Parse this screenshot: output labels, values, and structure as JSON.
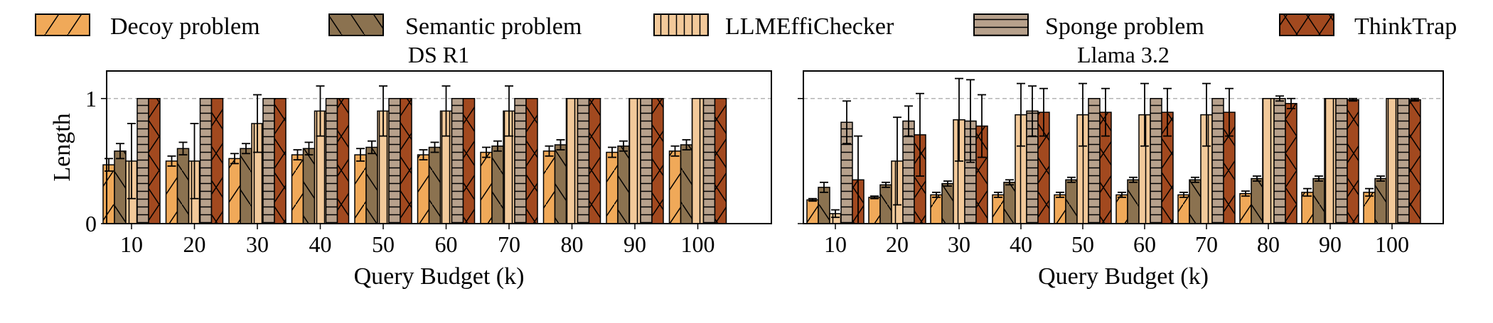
{
  "chart_data": [
    {
      "type": "bar",
      "title": "DS R1",
      "xlabel": "Query Budget (k)",
      "ylabel": "Length",
      "ylim": [
        0,
        1.22
      ],
      "yticks": [
        0,
        1
      ],
      "grid": "dashed horizontal line at 1",
      "legend": "top",
      "categories": [
        "10",
        "20",
        "30",
        "40",
        "50",
        "60",
        "70",
        "80",
        "90",
        "100"
      ],
      "series": [
        {
          "name": "Decoy problem",
          "values": [
            0.47,
            0.5,
            0.52,
            0.55,
            0.55,
            0.55,
            0.57,
            0.58,
            0.57,
            0.58
          ],
          "errors": [
            0.05,
            0.04,
            0.04,
            0.04,
            0.05,
            0.04,
            0.04,
            0.04,
            0.04,
            0.04
          ]
        },
        {
          "name": "Semantic problem",
          "values": [
            0.58,
            0.6,
            0.6,
            0.6,
            0.61,
            0.61,
            0.62,
            0.63,
            0.62,
            0.63
          ],
          "errors": [
            0.06,
            0.05,
            0.04,
            0.05,
            0.05,
            0.04,
            0.04,
            0.04,
            0.04,
            0.04
          ]
        },
        {
          "name": "LLMEffiChecker",
          "values": [
            0.5,
            0.5,
            0.8,
            0.9,
            0.9,
            0.9,
            0.9,
            1.0,
            1.0,
            1.0
          ],
          "errors": [
            0.3,
            0.3,
            0.23,
            0.2,
            0.2,
            0.2,
            0.2,
            0.0,
            0.0,
            0.0
          ]
        },
        {
          "name": "Sponge problem",
          "values": [
            1.0,
            1.0,
            1.0,
            1.0,
            1.0,
            1.0,
            1.0,
            1.0,
            1.0,
            1.0
          ],
          "errors": [
            0,
            0,
            0,
            0,
            0,
            0,
            0,
            0,
            0,
            0
          ]
        },
        {
          "name": "ThinkTrap",
          "values": [
            1.0,
            1.0,
            1.0,
            1.0,
            1.0,
            1.0,
            1.0,
            1.0,
            1.0,
            1.0
          ],
          "errors": [
            0,
            0,
            0,
            0,
            0,
            0,
            0,
            0,
            0,
            0
          ]
        }
      ]
    },
    {
      "type": "bar",
      "title": "Llama 3.2",
      "xlabel": "Query Budget (k)",
      "ylabel": "",
      "ylim": [
        0,
        1.22
      ],
      "yticks": [
        0,
        1
      ],
      "grid": "dashed horizontal line at 1",
      "legend": "top",
      "categories": [
        "10",
        "20",
        "30",
        "40",
        "50",
        "60",
        "70",
        "80",
        "90",
        "100"
      ],
      "series": [
        {
          "name": "Decoy problem",
          "values": [
            0.19,
            0.21,
            0.23,
            0.23,
            0.23,
            0.23,
            0.23,
            0.24,
            0.25,
            0.25
          ],
          "errors": [
            0.01,
            0.01,
            0.02,
            0.02,
            0.02,
            0.02,
            0.02,
            0.02,
            0.03,
            0.03
          ]
        },
        {
          "name": "Semantic problem",
          "values": [
            0.29,
            0.31,
            0.32,
            0.33,
            0.35,
            0.35,
            0.35,
            0.36,
            0.36,
            0.36
          ],
          "errors": [
            0.04,
            0.02,
            0.02,
            0.02,
            0.02,
            0.02,
            0.02,
            0.02,
            0.02,
            0.02
          ]
        },
        {
          "name": "LLMEffiChecker",
          "values": [
            0.08,
            0.5,
            0.83,
            0.87,
            0.87,
            0.87,
            0.87,
            1.0,
            1.0,
            1.0
          ],
          "errors": [
            0.03,
            0.35,
            0.33,
            0.25,
            0.25,
            0.25,
            0.25,
            0.0,
            0.0,
            0.0
          ]
        },
        {
          "name": "Sponge problem",
          "values": [
            0.81,
            0.82,
            0.82,
            0.9,
            1.0,
            1.0,
            1.0,
            1.0,
            1.0,
            1.0
          ],
          "errors": [
            0.17,
            0.12,
            0.33,
            0.2,
            0.0,
            0.0,
            0.0,
            0.02,
            0.0,
            0.0
          ]
        },
        {
          "name": "ThinkTrap",
          "values": [
            0.35,
            0.71,
            0.78,
            0.89,
            0.89,
            0.89,
            0.89,
            0.96,
            0.99,
            0.99
          ],
          "errors": [
            0.35,
            0.33,
            0.25,
            0.19,
            0.19,
            0.19,
            0.19,
            0.04,
            0.01,
            0.01
          ]
        }
      ]
    }
  ],
  "legend": {
    "items": [
      {
        "label": "Decoy problem",
        "color": "#F0A959",
        "pattern": "diag"
      },
      {
        "label": "Semantic problem",
        "color": "#8B7250",
        "pattern": "backdiag"
      },
      {
        "label": "LLMEffiChecker",
        "color": "#F2C99A",
        "pattern": "vert"
      },
      {
        "label": "Sponge problem",
        "color": "#B7A18C",
        "pattern": "horiz"
      },
      {
        "label": "ThinkTrap",
        "color": "#A2491F",
        "pattern": "cross"
      }
    ]
  }
}
